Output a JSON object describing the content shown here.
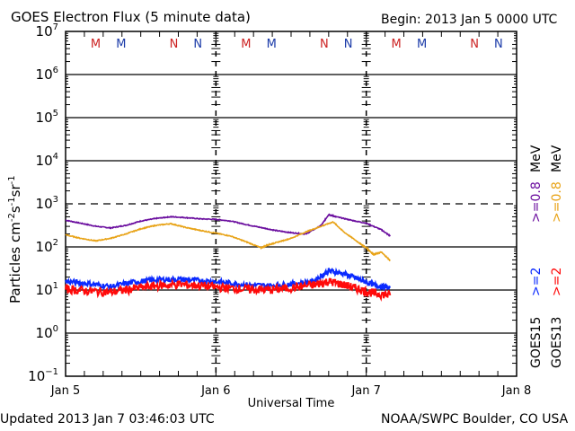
{
  "header": {
    "title": "GOES Electron Flux (5 minute data)",
    "begin": "Begin: 2013 Jan 5 0000 UTC"
  },
  "footer": {
    "updated": "Updated 2013 Jan  7 03:46:03 UTC",
    "credit": "NOAA/SWPC Boulder, CO USA"
  },
  "legend": {
    "goes15": "GOES15",
    "goes13": "GOES13",
    "g15_2mev": ">=2",
    "g13_2mev": ">=2",
    "g15_08mev": ">=0.8",
    "g13_08mev": ">=0.8",
    "mev": "MeV"
  },
  "colors": {
    "goes15_08": "#6a0d9e",
    "goes13_08": "#e8a317",
    "goes15_2": "#0a2aff",
    "goes13_2": "#ff0a0a",
    "marker_m": "#cc2222",
    "marker_n_red": "#cc2222",
    "marker_blue": "#1a3aa8"
  },
  "chart_data": {
    "type": "line",
    "title": "GOES Electron Flux (5 minute data)",
    "xlabel": "Universal Time",
    "ylabel": "Particles cm-2 s-1 sr-1",
    "yscale": "log",
    "ylim_exp": [
      -1,
      7
    ],
    "xlim_days": [
      0,
      3
    ],
    "x_ticks": [
      "Jan 5",
      "Jan 6",
      "Jan 7",
      "Jan 8"
    ],
    "y_ticks_exp": [
      -1,
      0,
      1,
      2,
      3,
      4,
      5,
      6,
      7
    ],
    "threshold_exp": 3,
    "top_markers": [
      {
        "label": "M",
        "day": 0.2,
        "color": "red"
      },
      {
        "label": "M",
        "day": 0.37,
        "color": "blue"
      },
      {
        "label": "N",
        "day": 0.72,
        "color": "red"
      },
      {
        "label": "N",
        "day": 0.88,
        "color": "blue"
      },
      {
        "label": "M",
        "day": 1.2,
        "color": "red"
      },
      {
        "label": "M",
        "day": 1.37,
        "color": "blue"
      },
      {
        "label": "N",
        "day": 1.72,
        "color": "red"
      },
      {
        "label": "N",
        "day": 1.88,
        "color": "blue"
      },
      {
        "label": "M",
        "day": 2.2,
        "color": "red"
      },
      {
        "label": "M",
        "day": 2.37,
        "color": "blue"
      },
      {
        "label": "N",
        "day": 2.72,
        "color": "red"
      },
      {
        "label": "N",
        "day": 2.88,
        "color": "blue"
      }
    ],
    "series": [
      {
        "name": "GOES15 >=0.8 MeV",
        "color_key": "goes15_08",
        "noise": 0.01,
        "x": [
          0,
          0.1,
          0.2,
          0.3,
          0.4,
          0.5,
          0.6,
          0.7,
          0.8,
          0.9,
          1.0,
          1.1,
          1.2,
          1.3,
          1.4,
          1.5,
          1.6,
          1.7,
          1.75,
          1.8,
          1.9,
          2.0,
          2.1,
          2.16
        ],
        "log10": [
          2.62,
          2.55,
          2.48,
          2.44,
          2.5,
          2.6,
          2.66,
          2.7,
          2.68,
          2.65,
          2.64,
          2.6,
          2.52,
          2.45,
          2.38,
          2.33,
          2.3,
          2.5,
          2.75,
          2.7,
          2.62,
          2.55,
          2.4,
          2.25
        ]
      },
      {
        "name": "GOES13 >=0.8 MeV",
        "color_key": "goes13_08",
        "noise": 0.01,
        "x": [
          0,
          0.1,
          0.2,
          0.3,
          0.4,
          0.5,
          0.6,
          0.7,
          0.8,
          0.9,
          1.0,
          1.1,
          1.2,
          1.3,
          1.35,
          1.4,
          1.5,
          1.6,
          1.7,
          1.78,
          1.85,
          1.95,
          2.0,
          2.05,
          2.1,
          2.16
        ],
        "log10": [
          2.28,
          2.2,
          2.14,
          2.2,
          2.3,
          2.42,
          2.5,
          2.54,
          2.45,
          2.38,
          2.32,
          2.25,
          2.12,
          1.98,
          2.05,
          2.1,
          2.2,
          2.35,
          2.48,
          2.58,
          2.35,
          2.1,
          1.98,
          1.82,
          1.88,
          1.68
        ]
      },
      {
        "name": "GOES15 >=2 MeV",
        "color_key": "goes15_2",
        "noise": 0.06,
        "x": [
          0,
          0.15,
          0.3,
          0.45,
          0.6,
          0.75,
          0.9,
          1.05,
          1.2,
          1.35,
          1.5,
          1.65,
          1.75,
          1.85,
          1.95,
          2.05,
          2.16
        ],
        "log10": [
          1.2,
          1.15,
          1.08,
          1.18,
          1.24,
          1.25,
          1.22,
          1.18,
          1.12,
          1.1,
          1.14,
          1.2,
          1.45,
          1.38,
          1.25,
          1.12,
          1.05
        ]
      },
      {
        "name": "GOES13 >=2 MeV",
        "color_key": "goes13_2",
        "noise": 0.1,
        "x": [
          0,
          0.15,
          0.3,
          0.45,
          0.6,
          0.75,
          0.9,
          1.05,
          1.2,
          1.35,
          1.5,
          1.65,
          1.75,
          1.85,
          1.95,
          2.05,
          2.16
        ],
        "log10": [
          1.02,
          0.98,
          0.95,
          1.03,
          1.1,
          1.13,
          1.1,
          1.05,
          1.02,
          1.0,
          1.05,
          1.12,
          1.2,
          1.12,
          1.02,
          0.92,
          0.88
        ]
      }
    ]
  }
}
